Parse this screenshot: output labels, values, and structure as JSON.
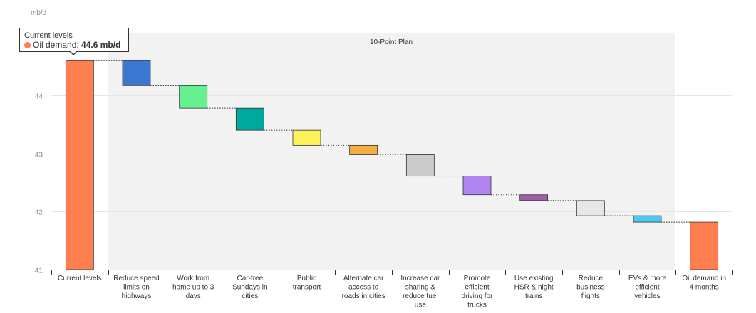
{
  "chart_data": {
    "type": "waterfall",
    "unit_label": "mb/d",
    "ylim": [
      41,
      45
    ],
    "yticks": [
      41,
      42,
      43,
      44
    ],
    "band_label": "10-Point Plan",
    "categories": [
      "Current levels",
      "Reduce speed limits on highways",
      "Work from home up to 3 days",
      "Car-free Sundays in cities",
      "Public transport",
      "Alternate car access to roads in cities",
      "Increase car sharing & reduce fuel use",
      "Promote efficient driving for trucks",
      "Use existing HSR & night trains",
      "Reduce business flights",
      "EVs & more efficient vehicles",
      "Oil demand in 4 months"
    ],
    "category_lines": [
      [
        "Current levels"
      ],
      [
        "Reduce speed",
        "limits on",
        "highways"
      ],
      [
        "Work from",
        "home up to 3",
        "days"
      ],
      [
        "Car-free",
        "Sundays in",
        "cities"
      ],
      [
        "Public",
        "transport"
      ],
      [
        "Alternate car",
        "access to",
        "roads in cities"
      ],
      [
        "Increase car",
        "sharing &",
        "reduce fuel",
        "use"
      ],
      [
        "Promote",
        "efficient",
        "driving for",
        "trucks"
      ],
      [
        "Use existing",
        "HSR & night",
        "trains"
      ],
      [
        "Reduce",
        "business",
        "flights"
      ],
      [
        "EVs & more",
        "efficient",
        "vehicles"
      ],
      [
        "Oil demand in",
        "4 months"
      ]
    ],
    "bars": [
      {
        "start": 41,
        "end": 44.6,
        "color": "#ff7f50"
      },
      {
        "start": 44.6,
        "end": 44.17,
        "color": "#3a78d4"
      },
      {
        "start": 44.17,
        "end": 43.78,
        "color": "#66f08f"
      },
      {
        "start": 43.78,
        "end": 43.4,
        "color": "#00a99d"
      },
      {
        "start": 43.4,
        "end": 43.14,
        "color": "#fdf15a"
      },
      {
        "start": 43.14,
        "end": 42.98,
        "color": "#f5b041"
      },
      {
        "start": 42.98,
        "end": 42.61,
        "color": "#cccccc"
      },
      {
        "start": 42.61,
        "end": 42.29,
        "color": "#b185f0"
      },
      {
        "start": 42.29,
        "end": 42.19,
        "color": "#a05ea8"
      },
      {
        "start": 42.19,
        "end": 41.93,
        "color": "#e6e6e6"
      },
      {
        "start": 41.93,
        "end": 41.82,
        "color": "#4cc9f0"
      },
      {
        "start": 41,
        "end": 41.82,
        "color": "#ff7f50"
      }
    ],
    "grid": true,
    "tooltip": {
      "title": "Current levels",
      "series": "Oil demand",
      "value": "44.6 mb/d",
      "color": "#ff7f50"
    }
  }
}
